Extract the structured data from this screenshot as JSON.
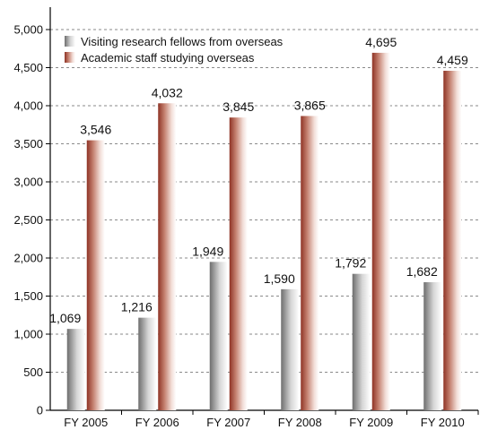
{
  "chart_data": {
    "type": "bar",
    "categories": [
      "FY 2005",
      "FY 2006",
      "FY 2007",
      "FY 2008",
      "FY 2009",
      "FY 2010"
    ],
    "series": [
      {
        "name": "Visiting research fellows from overseas",
        "values": [
          1069,
          1216,
          1949,
          1590,
          1792,
          1682
        ],
        "labels": [
          "1,069",
          "1,216",
          "1,949",
          "1,590",
          "1,792",
          "1,682"
        ],
        "color": "#8c8c8c"
      },
      {
        "name": "Academic staff studying overseas",
        "values": [
          3546,
          4032,
          3845,
          3865,
          4695,
          4459
        ],
        "labels": [
          "3,546",
          "4,032",
          "3,845",
          "3,865",
          "4,695",
          "4,459"
        ],
        "color": "#9a3a2c"
      }
    ],
    "yticks": [
      0,
      500,
      1000,
      1500,
      2000,
      2500,
      3000,
      3500,
      4000,
      4500,
      5000
    ],
    "ytick_labels": [
      "0",
      "500",
      "1,000",
      "1,500",
      "2,000",
      "2,500",
      "3,000",
      "3,500",
      "4,000",
      "4,500",
      "5,000"
    ],
    "ylim": [
      0,
      5000
    ],
    "grid": true,
    "legend_position": "top-left",
    "title": "",
    "xlabel": "",
    "ylabel": ""
  }
}
